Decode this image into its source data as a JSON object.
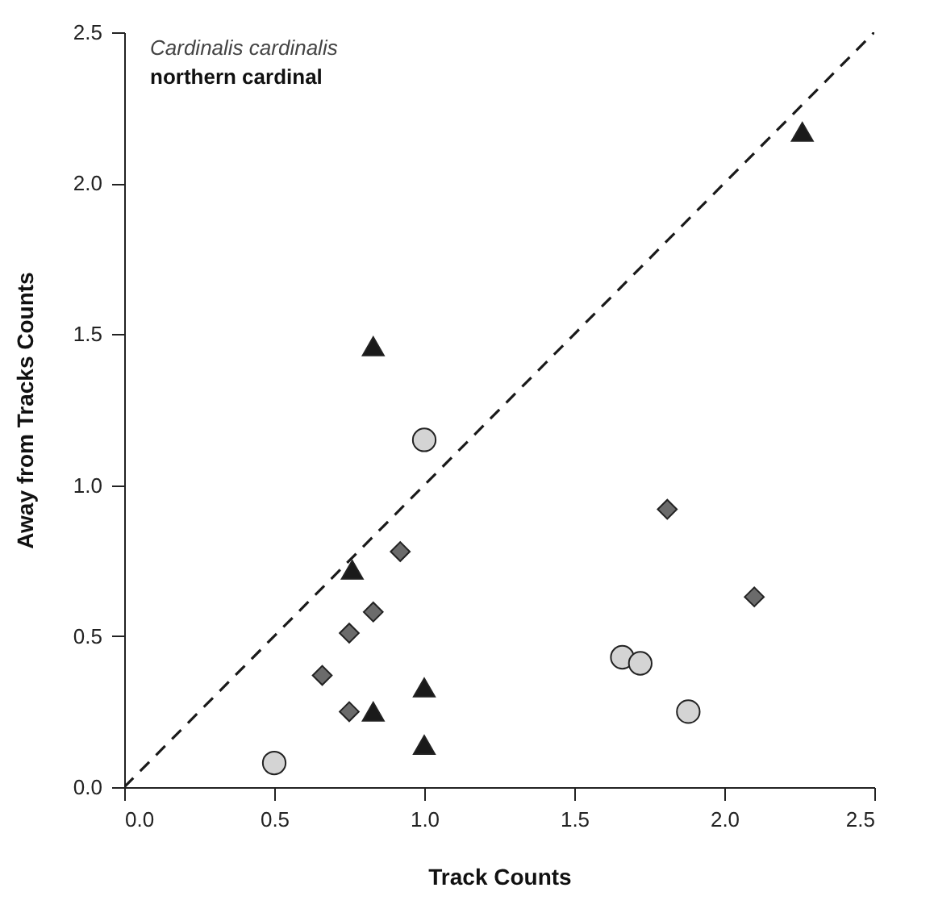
{
  "chart_data": {
    "type": "scatter",
    "xlabel": "Track Counts",
    "ylabel": "Away from Tracks Counts",
    "annotations": [
      "Cardinalis cardinalis",
      "northern cardinal"
    ],
    "xlim": [
      0,
      2.5
    ],
    "ylim": [
      0,
      2.5
    ],
    "xticks": [
      {
        "value": 0,
        "label": "0.0"
      },
      0.5,
      {
        "value": 1,
        "label": "1.0"
      },
      1.5,
      {
        "value": 2,
        "label": "2.0"
      },
      2.5
    ],
    "yticks": [
      {
        "value": 0,
        "label": "0.0"
      },
      0.5,
      {
        "value": 1,
        "label": "1.0"
      },
      1.5,
      {
        "value": 2,
        "label": "2.0"
      },
      2.5
    ],
    "grid": false,
    "series": [
      {
        "type": "line",
        "color": "#1a1a1a",
        "line_style": "dashed",
        "marker": "none",
        "x": [
          0,
          2.5
        ],
        "values": [
          0,
          2.5
        ]
      },
      {
        "type": "scatter",
        "color": "#d4d4d4",
        "marker": "circle",
        "x": [
          1.0,
          0.5,
          1.66,
          1.72,
          1.88
        ],
        "values": [
          1.15,
          0.08,
          0.43,
          0.41,
          0.25
        ]
      },
      {
        "type": "scatter",
        "color": "#6b6b6b",
        "marker": "diamond",
        "x": [
          1.81,
          2.1,
          0.92,
          0.83,
          0.75,
          0.66,
          0.75
        ],
        "values": [
          0.92,
          0.63,
          0.78,
          0.58,
          0.51,
          0.37,
          0.25
        ]
      },
      {
        "type": "scatter",
        "color": "#1a1a1a",
        "marker": "triangle",
        "x": [
          2.26,
          0.83,
          0.76,
          0.83,
          1.0,
          1.0
        ],
        "values": [
          2.17,
          1.46,
          0.72,
          0.25,
          0.33,
          0.14
        ]
      }
    ]
  }
}
